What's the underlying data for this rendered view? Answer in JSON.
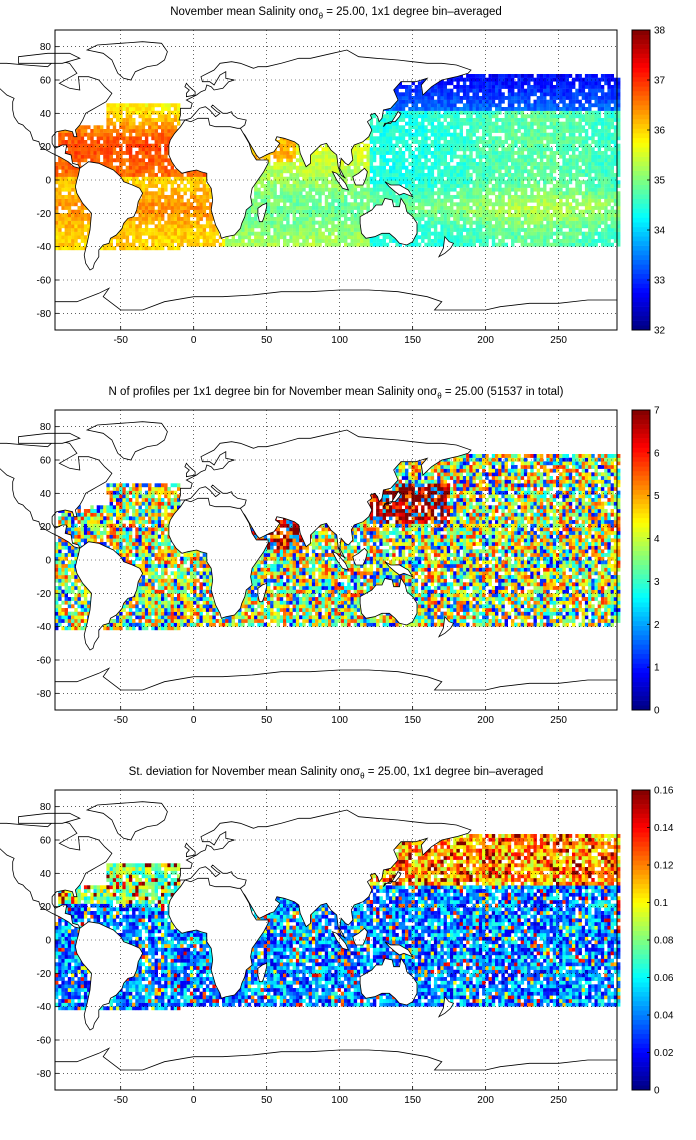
{
  "panels": [
    {
      "id": "salinity",
      "title_pre": "November mean Salinity on",
      "title_post": " = 25.00, 1x1 degree bin–averaged",
      "sigma_symbol": "σ",
      "sigma_sub": "θ",
      "colorbar": {
        "min": 32,
        "max": 38,
        "ticks": [
          "32",
          "33",
          "34",
          "35",
          "36",
          "37",
          "38"
        ]
      }
    },
    {
      "id": "count",
      "title_pre": "N of profiles per 1x1 degree bin for November mean Salinity on",
      "title_post": " = 25.00 (51537 in total)",
      "sigma_symbol": "σ",
      "sigma_sub": "θ",
      "colorbar": {
        "min": 0,
        "max": 7,
        "ticks": [
          "0",
          "1",
          "2",
          "3",
          "4",
          "5",
          "6",
          "7"
        ]
      }
    },
    {
      "id": "stdev",
      "title_pre": "St. deviation for November mean Salinity on",
      "title_post": " = 25.00, 1x1 degree bin–averaged",
      "sigma_symbol": "σ",
      "sigma_sub": "θ",
      "colorbar": {
        "min": 0,
        "max": 0.16,
        "ticks": [
          "0",
          "0.02",
          "0.04",
          "0.06",
          "0.08",
          "0.1",
          "0.12",
          "0.14",
          "0.16"
        ]
      }
    }
  ],
  "map_axes": {
    "lon_range": [
      -95,
      290
    ],
    "lat_range": [
      -90,
      90
    ],
    "lon_ticks": [
      "-50",
      "0",
      "50",
      "100",
      "150",
      "200",
      "250"
    ],
    "lat_ticks": [
      "80",
      "60",
      "40",
      "20",
      "0",
      "-20",
      "-40",
      "-60",
      "-80"
    ],
    "grid": "dotted"
  },
  "colormap": "jet"
}
